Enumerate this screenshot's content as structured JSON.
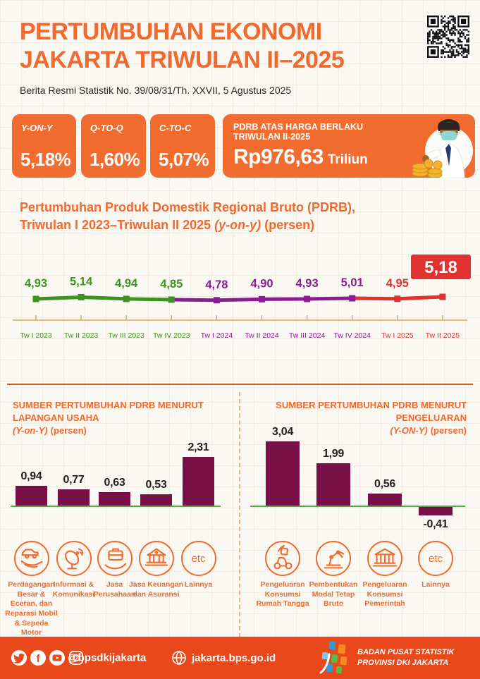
{
  "colors": {
    "accent_orange": "#f2692e",
    "box_orange": "#f26c30",
    "footer_orange": "#e8481a",
    "bar_maroon": "#780f46",
    "green_2023": "#3e9220",
    "purple_2024": "#8e1b96",
    "red_2025": "#e23131",
    "axis_gold": "#d8ac57",
    "baseline_green": "#55a845"
  },
  "header": {
    "title_line1": "PERTUMBUHAN EKONOMI",
    "title_line2": "JAKARTA TRIWULAN II–2025",
    "subtitle": "Berita Resmi Statistik No. 39/08/31/Th. XXVII, 5 Agustus 2025"
  },
  "stats": {
    "boxes": [
      {
        "label": "Y-ON-Y",
        "value": "5,18%"
      },
      {
        "label": "Q-TO-Q",
        "value": "1,60%"
      },
      {
        "label": "C-TO-C",
        "value": "5,07%"
      }
    ],
    "pdrb": {
      "title": "PDRB ATAS HARGA BERLAKU TRIWULAN II-2025",
      "value": "Rp976,63",
      "unit": "Triliun"
    }
  },
  "line_section": {
    "title_line1": "Pertumbuhan Produk Domestik Regional Bruto (PDRB),",
    "title_line2_main": "Triwulan I 2023–Triwulan II 2025",
    "title_line2_italic": "(y-on-y)",
    "title_line2_suffix": "(persen)"
  },
  "sections": {
    "etc_text": "etc",
    "left": {
      "header": "SUMBER PERTUMBUHAN PDRB MENURUT LAPANGAN USAHA",
      "sub_italic": "(Y-on-Y)",
      "sub_rest": "(persen)",
      "categories": [
        {
          "icon": "trade-icon",
          "label": "Perdagangan Besar & Eceran, dan Reparasi Mobil & Sepeda Motor"
        },
        {
          "icon": "satellite-icon",
          "label": "Informasi & Komunikasi"
        },
        {
          "icon": "briefcase-hand-icon",
          "label": "Jasa Perusahaan"
        },
        {
          "icon": "bank-icon",
          "label": "Jasa Keuangan dan Asuransi"
        },
        {
          "icon": "etc-circle",
          "label": "Lainnya"
        }
      ]
    },
    "right": {
      "header": "SUMBER PERTUMBUHAN PDRB MENURUT PENGELUARAN",
      "sub_italic": "(Y-ON-Y)",
      "sub_rest": "(persen)",
      "categories": [
        {
          "icon": "scooter-icon",
          "label": "Pengeluaran Konsumsi Rumah Tangga"
        },
        {
          "icon": "robot-arm-icon",
          "label": "Pembentukan Modal Tetap Bruto"
        },
        {
          "icon": "government-building-icon",
          "label": "Pengeluaran Konsumsi Pemerintah"
        },
        {
          "icon": "etc-circle",
          "label": "Lainnya"
        }
      ]
    }
  },
  "chart_data": [
    {
      "type": "line",
      "title": "Pertumbuhan Produk Domestik Regional Bruto (PDRB), Triwulan I 2023–Triwulan II 2025 (y-on-y) (persen)",
      "categories": [
        "Tw I 2023",
        "Tw II 2023",
        "Tw III 2023",
        "Tw IV 2023",
        "Tw I 2024",
        "Tw II 2024",
        "Tw III 2024",
        "Tw IV 2024",
        "Tw I 2025",
        "Tw II 2025"
      ],
      "values": [
        4.93,
        5.14,
        4.94,
        4.85,
        4.78,
        4.9,
        4.93,
        5.01,
        4.95,
        5.18
      ],
      "labels": [
        "4,93",
        "5,14",
        "4,94",
        "4,85",
        "4,78",
        "4,90",
        "4,93",
        "5,01",
        "4,95",
        "5,18"
      ],
      "year_colors": {
        "2023": "#3e9220",
        "2024": "#8e1b96",
        "2025": "#e23131"
      },
      "highlight_last": true,
      "ylim": [
        4.5,
        5.4
      ],
      "grid": false,
      "legend": "none"
    },
    {
      "type": "bar",
      "title": "SUMBER PERTUMBUHAN PDRB MENURUT LAPANGAN USAHA (Y-on-Y) (persen)",
      "categories": [
        "Perdagangan Besar & Eceran, dan Reparasi Mobil & Sepeda Motor",
        "Informasi & Komunikasi",
        "Jasa Perusahaan",
        "Jasa Keuangan dan Asuransi",
        "Lainnya"
      ],
      "values": [
        0.94,
        0.77,
        0.63,
        0.53,
        2.31
      ],
      "labels": [
        "0,94",
        "0,77",
        "0,63",
        "0,53",
        "2,31"
      ],
      "bar_color": "#780f46",
      "ylim": [
        0,
        2.5
      ],
      "grid": false
    },
    {
      "type": "bar",
      "title": "SUMBER PERTUMBUHAN PDRB MENURUT PENGELUARAN (Y-ON-Y) (persen)",
      "categories": [
        "Pengeluaran Konsumsi Rumah Tangga",
        "Pembentukan Modal Tetap Bruto",
        "Pengeluaran Konsumsi Pemerintah",
        "Lainnya"
      ],
      "values": [
        3.04,
        1.99,
        0.56,
        -0.41
      ],
      "labels": [
        "3,04",
        "1,99",
        "0,56",
        "-0,41"
      ],
      "bar_color": "#780f46",
      "ylim": [
        -0.6,
        3.3
      ],
      "grid": false
    }
  ],
  "footer": {
    "social_icons": [
      "twitter-icon",
      "facebook-icon",
      "youtube-icon",
      "instagram-icon"
    ],
    "handle": "@bpsdkijakarta",
    "website": "jakarta.bps.go.id",
    "agency_line1": "BADAN PUSAT STATISTIK",
    "agency_line2": "PROVINSI DKI JAKARTA"
  }
}
